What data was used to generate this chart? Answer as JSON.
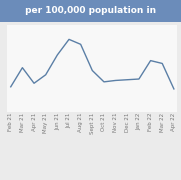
{
  "title": " per 100,000 population in ",
  "title_bg": "#6b8cba",
  "title_fg": "#ffffff",
  "x_labels": [
    "Feb 21",
    "Mar 21",
    "Apr 21",
    "May 21",
    "Jun 21",
    "Jul 21",
    "Aug 21",
    "Sept 21",
    "Oct 21",
    "Nov 21",
    "Dec 21",
    "Jan 22",
    "Feb 22",
    "Mar 22",
    "Apr 22"
  ],
  "y_values": [
    3.5,
    6.2,
    4.0,
    5.2,
    8.0,
    10.2,
    9.5,
    5.8,
    4.2,
    4.4,
    4.5,
    4.6,
    7.2,
    6.8,
    3.2
  ],
  "line_color": "#5b7fa6",
  "line_width": 1.0,
  "bg_color": "#ebebeb",
  "plot_bg": "#f8f8f8",
  "tick_fontsize": 4.0,
  "tick_color": "#777777",
  "title_fontsize": 6.5
}
